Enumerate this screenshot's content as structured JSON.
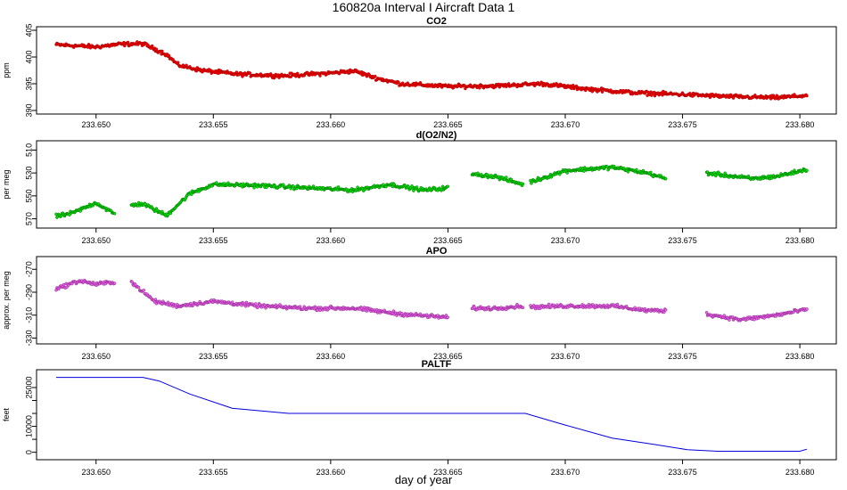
{
  "figure": {
    "title": "160820a   Interval I Aircraft Data 1",
    "xlabel": "day of year"
  },
  "chart_data": [
    {
      "type": "scatter",
      "title": "CO2",
      "ylabel": "ppm",
      "xlim": [
        233.6483,
        233.6803
      ],
      "ylim": [
        390,
        405
      ],
      "xticks": [
        "233.650",
        "233.655",
        "233.660",
        "233.665",
        "233.670",
        "233.675",
        "233.680"
      ],
      "yticks": [
        "390",
        "395",
        "400",
        "405"
      ],
      "series": [
        {
          "color": "#ff0000",
          "outline": "#990000",
          "x": [
            233.6483,
            233.65,
            233.651,
            233.652,
            233.653,
            233.6535,
            233.6545,
            233.656,
            233.658,
            233.66,
            233.661,
            233.662,
            233.663,
            233.665,
            233.667,
            233.669,
            233.671,
            233.673,
            233.675,
            233.677,
            233.679,
            233.6803
          ],
          "y": [
            402.3,
            401.9,
            402.4,
            402.5,
            400.5,
            398.5,
            397.5,
            396.8,
            396.5,
            397.0,
            397.4,
            396.0,
            395.0,
            394.5,
            394.6,
            395.0,
            394.0,
            393.3,
            393.0,
            392.6,
            392.4,
            392.8
          ]
        }
      ]
    },
    {
      "type": "scatter",
      "title": "d(O2/N2)",
      "ylabel": "per meg",
      "xlim": [
        233.6483,
        233.6803
      ],
      "ylim": [
        -575,
        -505
      ],
      "yticks": [
        "510",
        "530",
        "550",
        "570"
      ],
      "ytick_values": [
        -510,
        -530,
        -550,
        -570
      ],
      "xticks": [
        "233.650",
        "233.655",
        "233.660",
        "233.665",
        "233.670",
        "233.675",
        "233.680"
      ],
      "gaps": [
        [
          233.6508,
          233.6515
        ],
        [
          233.665,
          233.666
        ],
        [
          233.6682,
          233.6685
        ],
        [
          233.6743,
          233.676
        ]
      ],
      "series": [
        {
          "color": "#00ee00",
          "outline": "#006600",
          "x": [
            233.6483,
            233.649,
            233.65,
            233.6508,
            233.6515,
            233.652,
            233.653,
            233.654,
            233.655,
            233.657,
            233.659,
            233.661,
            233.6625,
            233.664,
            233.665,
            233.666,
            233.667,
            233.6682,
            233.6685,
            233.67,
            233.672,
            233.6735,
            233.6743,
            233.676,
            233.678,
            233.679,
            233.6803
          ],
          "y": [
            -568,
            -565,
            -556,
            -566,
            -558,
            -557,
            -567,
            -548,
            -540,
            -541,
            -543,
            -545,
            -540,
            -545,
            -543,
            -531,
            -533,
            -540,
            -538,
            -528,
            -525,
            -530,
            -535,
            -530,
            -535,
            -533,
            -527
          ]
        }
      ]
    },
    {
      "type": "scatter",
      "title": "APO",
      "ylabel": "approx. per meg",
      "xlim": [
        233.6483,
        233.6803
      ],
      "ylim": [
        -332,
        -262
      ],
      "yticks": [
        "-270",
        "-290",
        "-310",
        "-330"
      ],
      "ytick_values": [
        -270,
        -290,
        -310,
        -330
      ],
      "xticks": [
        "233.650",
        "233.655",
        "233.660",
        "233.665",
        "233.670",
        "233.675",
        "233.680"
      ],
      "gaps": [
        [
          233.6508,
          233.6515
        ],
        [
          233.665,
          233.666
        ],
        [
          233.6682,
          233.6685
        ],
        [
          233.6743,
          233.676
        ]
      ],
      "series": [
        {
          "color": "#ee66ee",
          "outline": "#882288",
          "x": [
            233.6483,
            233.6493,
            233.65,
            233.6508,
            233.6515,
            233.6525,
            233.6535,
            233.655,
            233.657,
            233.659,
            233.661,
            233.663,
            233.665,
            233.666,
            233.667,
            233.6682,
            233.6685,
            233.67,
            233.672,
            233.6735,
            233.6743,
            233.676,
            233.6775,
            233.679,
            233.6803
          ],
          "y": [
            -287,
            -280,
            -283,
            -281,
            -281,
            -298,
            -302,
            -298,
            -302,
            -304,
            -304,
            -309,
            -312,
            -304,
            -304,
            -302,
            -303,
            -302,
            -302,
            -306,
            -306,
            -309,
            -314,
            -310,
            -305
          ]
        }
      ]
    },
    {
      "type": "line",
      "title": "PALTF",
      "ylabel": "feet",
      "xlim": [
        233.6483,
        233.6803
      ],
      "ylim": [
        -1500,
        30500
      ],
      "yticks": [
        "0",
        "10000",
        "25000"
      ],
      "ytick_values": [
        0,
        10000,
        25000
      ],
      "minor_yticks": [
        5000,
        15000,
        20000
      ],
      "xticks": [
        "233.650",
        "233.655",
        "233.660",
        "233.665",
        "233.670",
        "233.675",
        "233.680"
      ],
      "series": [
        {
          "color": "#0000dd",
          "x": [
            233.6483,
            233.652,
            233.6527,
            233.654,
            233.6558,
            233.6582,
            233.666,
            233.6683,
            233.67,
            233.672,
            233.6738,
            233.6752,
            233.6765,
            233.68,
            233.6803
          ],
          "y": [
            28900,
            28900,
            27500,
            22500,
            17000,
            15000,
            15000,
            15000,
            10500,
            5500,
            3000,
            1000,
            400,
            400,
            1200
          ]
        }
      ]
    }
  ]
}
